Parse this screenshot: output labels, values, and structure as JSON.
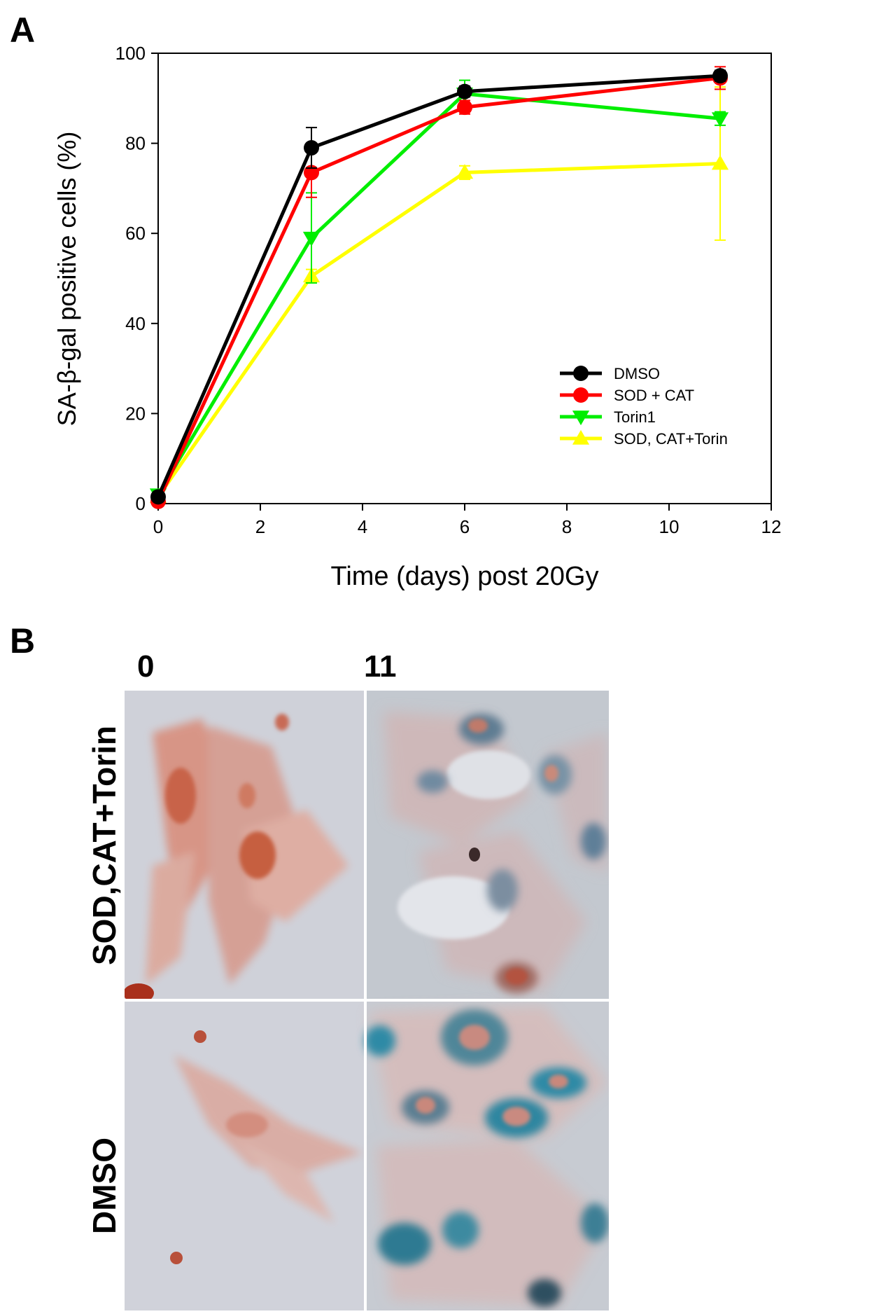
{
  "figure": {
    "panel_a_label": "A",
    "panel_b_label": "B"
  },
  "chart_data": {
    "type": "line",
    "title": "",
    "xlabel": "Time (days) post 20Gy",
    "ylabel": "SA-β-gal positive cells (%)",
    "xlim": [
      0,
      12
    ],
    "ylim": [
      0,
      100
    ],
    "xticks": [
      0,
      2,
      4,
      6,
      8,
      10,
      12
    ],
    "yticks": [
      0,
      20,
      40,
      60,
      80,
      100
    ],
    "grid": false,
    "legend_position": "lower-right",
    "series": [
      {
        "name": "DMSO",
        "color": "#000000",
        "marker": "circle",
        "x": [
          0,
          3,
          6,
          11
        ],
        "y": [
          1.5,
          79,
          91.5,
          95
        ],
        "err": [
          0.8,
          4.5,
          1.2,
          1.2
        ]
      },
      {
        "name": "SOD + CAT",
        "color": "#ff0000",
        "marker": "circle",
        "x": [
          0,
          3,
          6,
          11
        ],
        "y": [
          0.5,
          73.5,
          88,
          94.5
        ],
        "err": [
          0.5,
          5.5,
          1.5,
          2.5
        ]
      },
      {
        "name": "Torin1",
        "color": "#00ee00",
        "marker": "triangle-down",
        "x": [
          0,
          3,
          6,
          11
        ],
        "y": [
          2,
          59,
          91,
          85.5
        ],
        "err": [
          0.8,
          10,
          3,
          1.5
        ]
      },
      {
        "name": "SOD, CAT+Torin",
        "color": "#ffff00",
        "marker": "triangle-up",
        "x": [
          0,
          3,
          6,
          11
        ],
        "y": [
          1.5,
          50.5,
          73.5,
          75.5
        ],
        "err": [
          0.8,
          1.5,
          1.5,
          17
        ]
      }
    ]
  },
  "panel_b": {
    "columns": [
      "0",
      "11"
    ],
    "rows": [
      "SOD,CAT+Torin",
      "DMSO"
    ]
  }
}
